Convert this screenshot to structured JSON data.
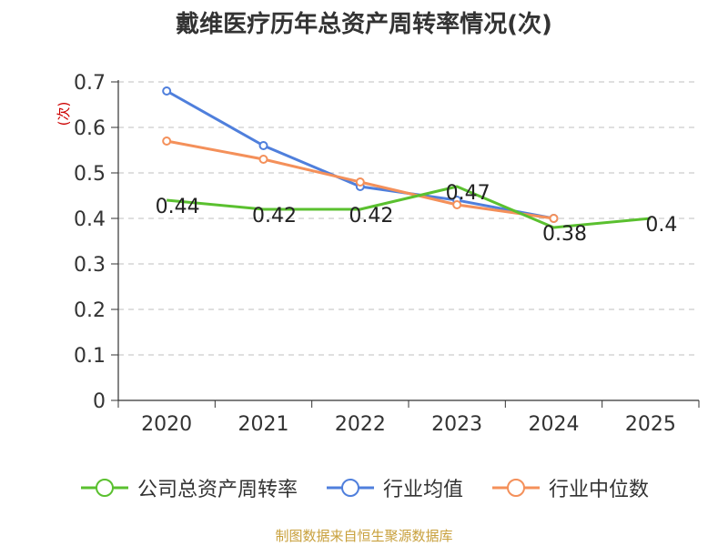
{
  "chart_data": {
    "type": "line",
    "title": "戴维医疗历年总资产周转率情况(次)",
    "ylabel": "(次)",
    "xlabel": "",
    "categories": [
      "2020",
      "2021",
      "2022",
      "2023",
      "2024",
      "2025"
    ],
    "ylim": [
      0,
      0.7
    ],
    "yticks": [
      "0",
      "0.1",
      "0.2",
      "0.3",
      "0.4",
      "0.5",
      "0.6",
      "0.7"
    ],
    "grid": true,
    "legend_position": "bottom",
    "series": [
      {
        "name": "公司总资产周转率",
        "color": "#5ac02f",
        "values": [
          0.44,
          0.42,
          0.42,
          0.47,
          0.38,
          0.4
        ],
        "labels": [
          "0.44",
          "0.42",
          "0.42",
          "0.47",
          "0.38",
          "0.4"
        ]
      },
      {
        "name": "行业均值",
        "color": "#4f7fdc",
        "values": [
          0.68,
          0.56,
          0.47,
          0.44,
          0.4,
          null
        ]
      },
      {
        "name": "行业中位数",
        "color": "#f4905a",
        "values": [
          0.57,
          0.53,
          0.48,
          0.43,
          0.4,
          null
        ]
      }
    ]
  },
  "source": "制图数据来自恒生聚源数据库"
}
